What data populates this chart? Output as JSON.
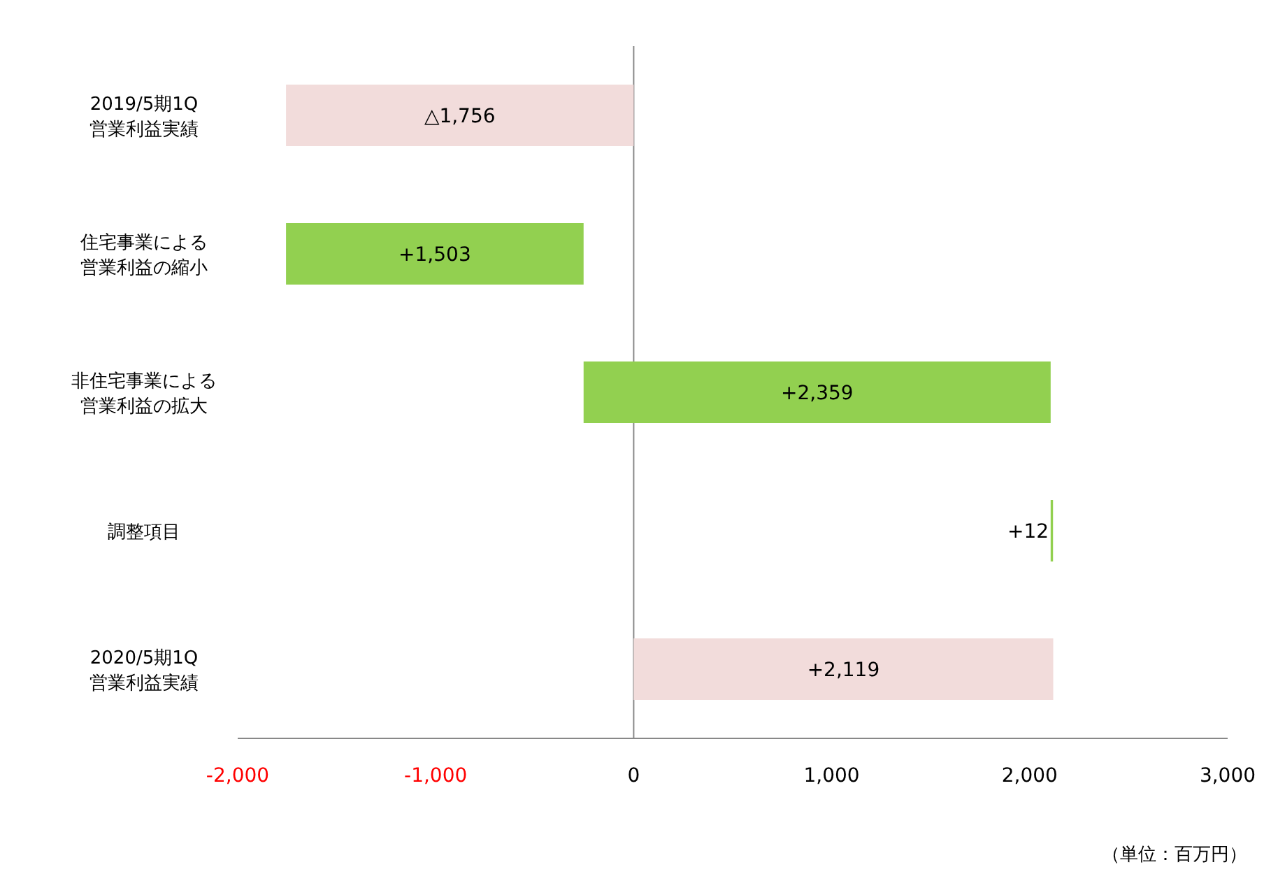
{
  "chart_data": {
    "type": "bar",
    "orientation": "horizontal",
    "categories": [
      "2019/5期1Q\n営業利益実績",
      "住宅事業による営業利益の縮小",
      "非住宅事業による営業利益の拡大",
      "調整項目",
      "2020/5期1Q\n営業利益実績"
    ],
    "base": [
      0,
      -1756,
      -253,
      2106,
      0
    ],
    "values": [
      -1756,
      1503,
      2359,
      12,
      2119
    ],
    "value_labels": [
      "△1,756",
      "+1,503",
      "+2,359",
      "+12",
      "+2,119"
    ],
    "colors": [
      "#f2dcdb",
      "#92d050",
      "#92d050",
      "#92d050",
      "#f2dcdb"
    ],
    "xlim": [
      -2000,
      3000
    ],
    "xticks": [
      {
        "value": -2000,
        "label": "-2,000"
      },
      {
        "value": -1000,
        "label": "-1,000"
      },
      0,
      {
        "value": 1000,
        "label": "1,000"
      },
      {
        "value": 2000,
        "label": "2,000"
      },
      {
        "value": 3000,
        "label": "3,000"
      }
    ],
    "annotations": [
      "（単位：百万円）"
    ]
  }
}
